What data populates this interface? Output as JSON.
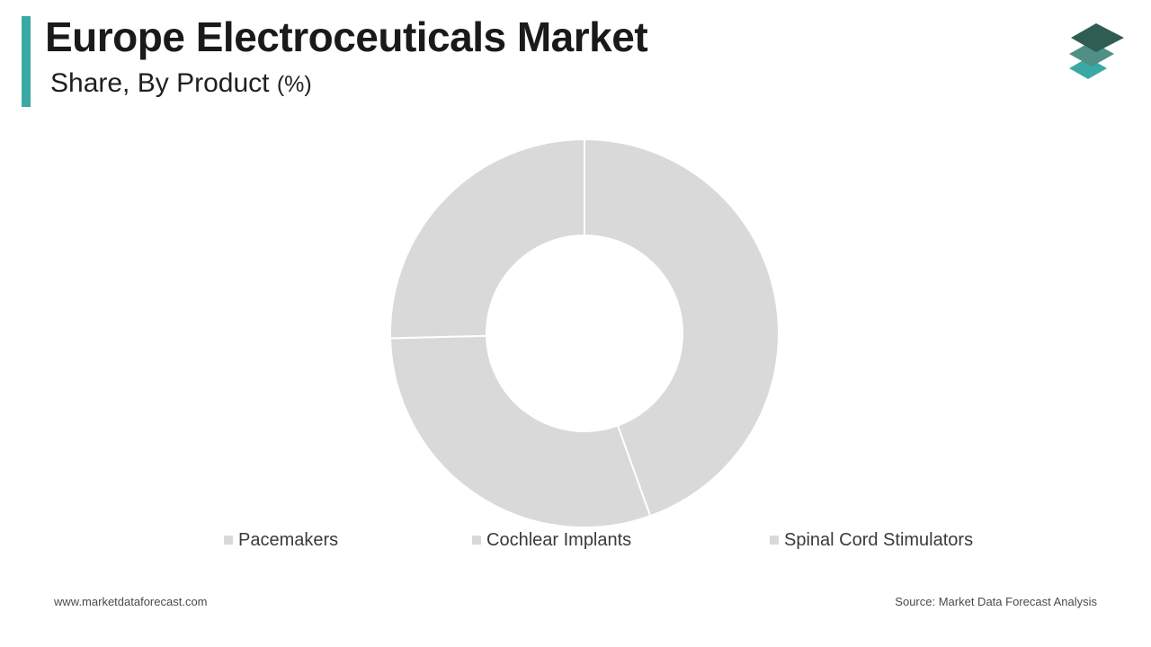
{
  "header": {
    "title": "Europe Electroceuticals Market",
    "subtitle": "Share, By Product",
    "unit": "(%)",
    "accent_color": "#3aa8a4"
  },
  "logo": {
    "icon": "layered-diamonds-logo",
    "colors": [
      "#2f5c53",
      "#4f8f86",
      "#3aa8a4"
    ]
  },
  "chart_data": {
    "type": "pie",
    "donut": true,
    "title": "Europe Electroceuticals Market",
    "subtitle": "Share, By Product (%)",
    "categories": [
      "Pacemakers",
      "Cochlear Implants",
      "Spinal Cord Stimulators"
    ],
    "values": [
      44.5,
      30.1,
      25.4
    ],
    "colors": [
      "#d9d9d9",
      "#d9d9d9",
      "#d9d9d9"
    ],
    "start_angle_deg": 0,
    "direction": "clockwise",
    "data_labels": false,
    "legend": {
      "position": "bottom",
      "entries": [
        "Pacemakers",
        "Cochlear Implants",
        "Spinal Cord Stimulators"
      ]
    }
  },
  "footer": {
    "website": "www.marketdataforecast.com",
    "source": "Source: Market Data Forecast Analysis"
  }
}
